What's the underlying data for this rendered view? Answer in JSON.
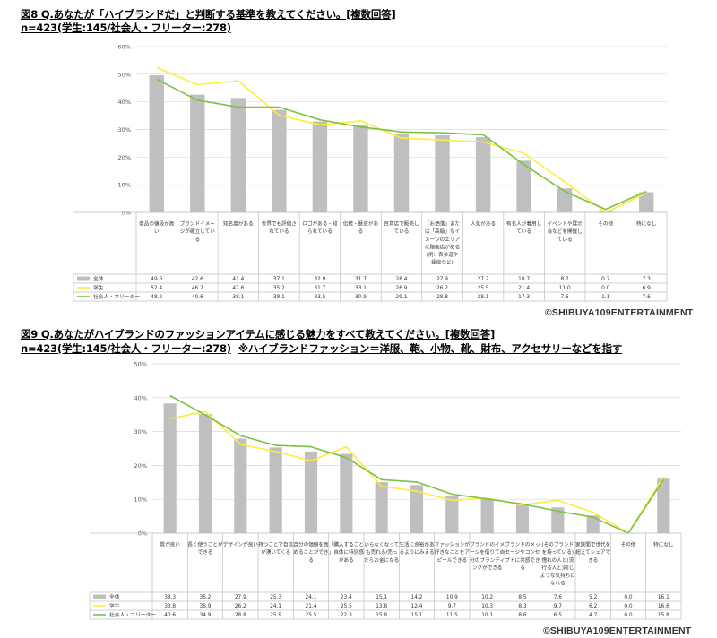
{
  "figure8": {
    "title": "図8 Q.あなたが「ハイブランドだ」と判断する基準を教えてください。[複数回答]",
    "sample": "n=423(学生:145/社会人・フリーター:278)",
    "note": "",
    "copyright": "©SHIBUYA109ENTERTAINMENT"
  },
  "figure9": {
    "title": "図9 Q.あなたがハイブランドのファッションアイテムに感じる魅力をすべて教えてください。[複数回答]",
    "sample": "n=423(学生:145/社会人・フリーター:278)",
    "note": "※ハイブランドファッション＝洋服、鞄、小物、靴、財布、アクセサリーなどを指す",
    "copyright": "©SHIBUYA109ENTERTAINMENT"
  },
  "colors": {
    "bar": "#bfbfbf",
    "student": "#ffeb3b",
    "worker": "#7cc242",
    "grid": "#d9d9d9",
    "table_border": "#bfbfbf"
  },
  "chart_data": [
    {
      "type": "bar",
      "ylim": [
        0,
        60
      ],
      "yticks": [
        "0%",
        "10%",
        "20%",
        "30%",
        "40%",
        "50%",
        "60%"
      ],
      "categories": [
        "商品の値段が高い",
        "ブランドイメージが確立している",
        "知名度がある",
        "世界でも評価されている",
        "ロゴがある・知られている",
        "伝統・歴史がある",
        "百貨店で販売している",
        "「お洒落」または「高級」なイメージのエリアに路面店がある(例：表参道や銀座など)",
        "人気がある",
        "有名人が着用している",
        "イベントや展示会などを開催している",
        "その他",
        "特になし"
      ],
      "series": [
        {
          "name": "全体",
          "kind": "bar",
          "values": [
            49.6,
            42.6,
            41.4,
            37.1,
            32.9,
            31.7,
            28.4,
            27.9,
            27.2,
            18.7,
            8.7,
            0.7,
            7.3
          ],
          "display": [
            "49.6",
            "42.6",
            "41.4",
            "37.1",
            "32.9",
            "31.7",
            "28.4",
            "27.9",
            "27.2",
            "18.7",
            "8.7",
            "0.7",
            "7.3"
          ]
        },
        {
          "name": "学生",
          "kind": "line",
          "values": [
            52.4,
            46.2,
            47.6,
            35.2,
            31.7,
            33.1,
            26.9,
            26.2,
            25.5,
            21.4,
            11.0,
            0.0,
            6.9
          ],
          "display": [
            "52.4",
            "46.2",
            "47.6",
            "35.2",
            "31.7",
            "33.1",
            "26.9",
            "26.2",
            "25.5",
            "21.4",
            "11.0",
            "0.0",
            "6.9"
          ]
        },
        {
          "name": "社会人・フリーター",
          "kind": "line",
          "values": [
            48.2,
            40.6,
            38.1,
            38.1,
            33.5,
            30.9,
            29.1,
            28.8,
            28.1,
            17.3,
            7.6,
            1.1,
            7.6
          ],
          "display": [
            "48.2",
            "40.6",
            "38.1",
            "38.1",
            "33.5",
            "30.9",
            "29.1",
            "28.8",
            "28.1",
            "17.3",
            "7.6",
            "1.1",
            "7.6"
          ]
        }
      ]
    },
    {
      "type": "bar",
      "ylim": [
        0,
        50
      ],
      "yticks": [
        "0%",
        "10%",
        "20%",
        "30%",
        "40%",
        "50%"
      ],
      "categories": [
        "質が良い",
        "長く使うことができる",
        "デザインが良い",
        "持つことで自信が湧いてくる",
        "自分の価値を高めることができる",
        "「購入すること」自体に特別感がある",
        "いらなくなっても売れる/売ったらお金になる",
        "生活に余裕があるようにみえる",
        "ファッションが好きなことをアピールできる",
        "ブランドのイメージを借りて自分のブランディングができる",
        "ブランドのメッセージやコンセプトに共感できる",
        "(そのブランドを持っている)憧れの人と(流行る人と)同じような気持ちになれる",
        "家族間で世代を超えてシェアできる",
        "その他",
        "特になし"
      ],
      "series": [
        {
          "name": "全体",
          "kind": "bar",
          "values": [
            38.3,
            35.2,
            27.9,
            25.3,
            24.1,
            23.4,
            15.1,
            14.2,
            10.9,
            10.2,
            8.5,
            7.6,
            5.2,
            0.0,
            16.1
          ],
          "display": [
            "38.3",
            "35.2",
            "27.9",
            "25.3",
            "24.1",
            "23.4",
            "15.1",
            "14.2",
            "10.9",
            "10.2",
            "8.5",
            "7.6",
            "5.2",
            "0.0",
            "16.1"
          ]
        },
        {
          "name": "学生",
          "kind": "line",
          "values": [
            33.8,
            35.9,
            26.2,
            24.1,
            21.4,
            25.5,
            13.8,
            12.4,
            9.7,
            10.3,
            8.3,
            9.7,
            6.2,
            0.0,
            16.6
          ],
          "display": [
            "33.8",
            "35.9",
            "26.2",
            "24.1",
            "21.4",
            "25.5",
            "13.8",
            "12.4",
            "9.7",
            "10.3",
            "8.3",
            "9.7",
            "6.2",
            "0.0",
            "16.6"
          ]
        },
        {
          "name": "社会人・フリーター",
          "kind": "line",
          "values": [
            40.6,
            34.9,
            28.8,
            25.9,
            25.5,
            22.3,
            15.8,
            15.1,
            11.5,
            10.1,
            8.6,
            6.5,
            4.7,
            0.0,
            15.8
          ],
          "display": [
            "40.6",
            "34.9",
            "28.8",
            "25.9",
            "25.5",
            "22.3",
            "15.8",
            "15.1",
            "11.5",
            "10.1",
            "8.6",
            "6.5",
            "4.7",
            "0.0",
            "15.8"
          ]
        }
      ]
    }
  ]
}
